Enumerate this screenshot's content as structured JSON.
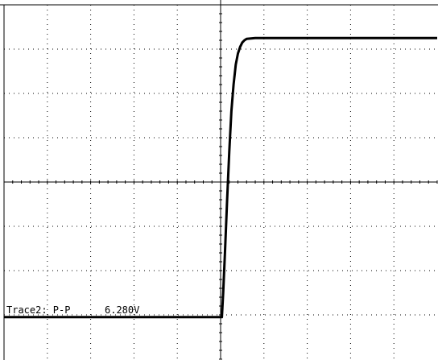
{
  "chart_data": {
    "type": "line",
    "title": "",
    "xlabel": "",
    "ylabel": "",
    "grid": true,
    "xlim": [
      0,
      10
    ],
    "ylim": [
      -4,
      4
    ],
    "series": [
      {
        "x": [
          0,
          5.03,
          5.06,
          5.1,
          5.15,
          5.2,
          5.25,
          5.3,
          5.35,
          5.4,
          5.45,
          5.5,
          5.55,
          5.6,
          5.7,
          5.8,
          5.9,
          6.0,
          7.0,
          8.0,
          9.0,
          10.0
        ],
        "values": [
          -3.05,
          -3.05,
          -2.5,
          -1.6,
          -0.4,
          0.7,
          1.6,
          2.2,
          2.65,
          2.9,
          3.05,
          3.15,
          3.2,
          3.23,
          3.24,
          3.25,
          3.25,
          3.25,
          3.25,
          3.25,
          3.25,
          3.25
        ]
      }
    ],
    "annotations": [
      {
        "label": "Trace2: P-P",
        "value": "6.280V"
      }
    ]
  },
  "colors": {
    "background": "#ffffff",
    "trace": "#000000",
    "grid": "#000000"
  }
}
